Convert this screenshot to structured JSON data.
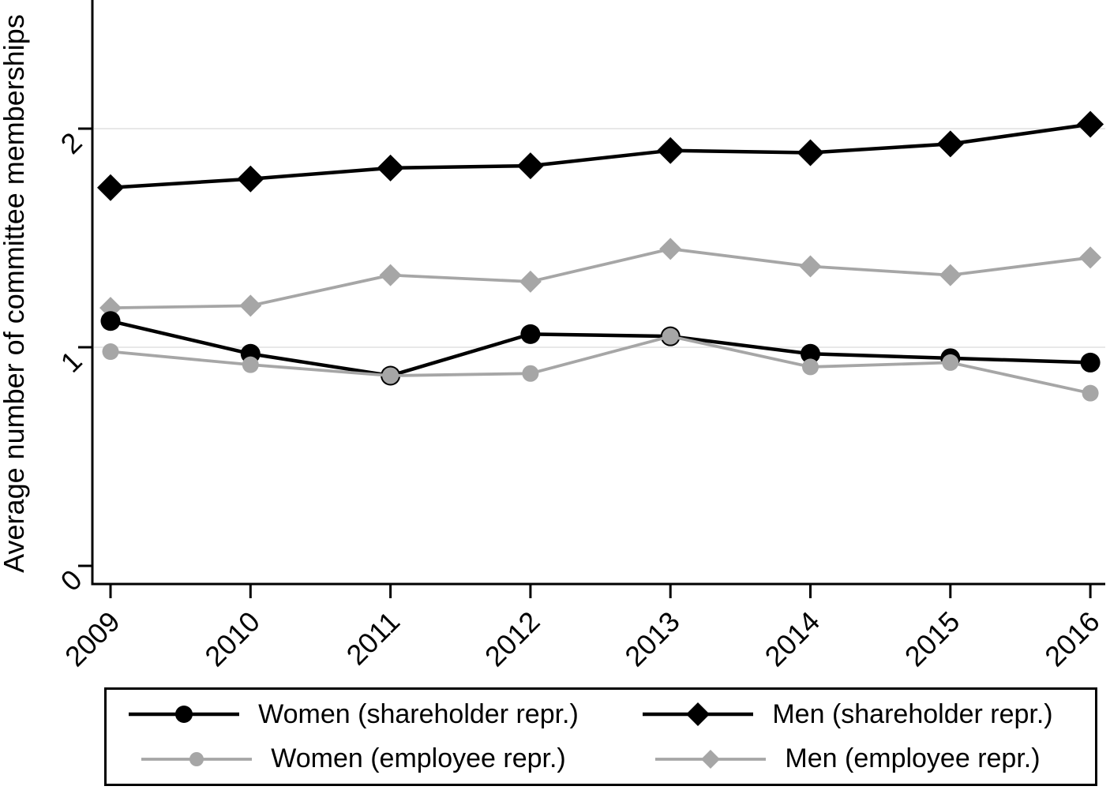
{
  "figure_name": "average-committee-memberships-by-gender-and-representative-type",
  "colors": {
    "black_series": "#000000",
    "gray_series": "#a6a6a6",
    "gridline": "#e8e8e8",
    "axis": "#000000",
    "background": "#ffffff"
  },
  "chart_data": {
    "type": "line",
    "title": "",
    "xlabel": "",
    "ylabel": "Average number of committee memberships",
    "categories": [
      "2009",
      "2010",
      "2011",
      "2012",
      "2013",
      "2014",
      "2015",
      "2016"
    ],
    "y_ticks": [
      "0",
      "1",
      "2"
    ],
    "y_gridlines": [
      1,
      2
    ],
    "ylim": [
      0,
      2.6
    ],
    "grid": "horizontal",
    "legend_position": "bottom",
    "tick_label_angle_deg": 45,
    "series": [
      {
        "name": "Women (shareholder repr.)",
        "color": "#000000",
        "marker": "circle",
        "values": [
          1.12,
          0.97,
          0.87,
          1.06,
          1.05,
          0.97,
          0.95,
          0.93
        ]
      },
      {
        "name": "Men (shareholder repr.)",
        "color": "#000000",
        "marker": "diamond",
        "values": [
          1.73,
          1.77,
          1.82,
          1.83,
          1.9,
          1.89,
          1.93,
          2.02
        ]
      },
      {
        "name": "Women (employee repr.)",
        "color": "#a6a6a6",
        "marker": "circle",
        "values": [
          0.98,
          0.92,
          0.87,
          0.88,
          1.05,
          0.91,
          0.93,
          0.79
        ]
      },
      {
        "name": "Men (employee repr.)",
        "color": "#a6a6a6",
        "marker": "diamond",
        "values": [
          1.18,
          1.19,
          1.33,
          1.3,
          1.45,
          1.37,
          1.33,
          1.41
        ]
      }
    ]
  }
}
